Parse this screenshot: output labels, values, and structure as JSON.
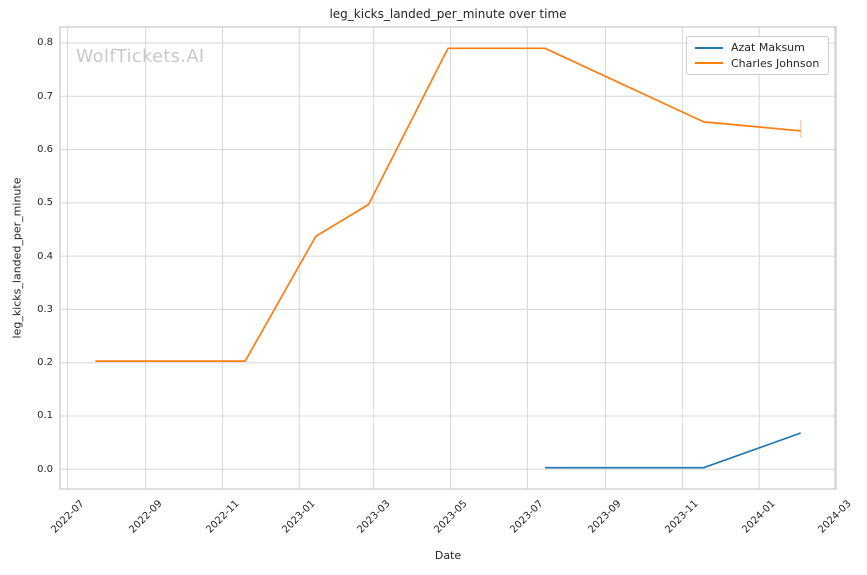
{
  "figure": {
    "watermark": "WolfTickets.AI"
  },
  "chart_data": {
    "type": "line",
    "title": "leg_kicks_landed_per_minute over time",
    "xlabel": "Date",
    "ylabel": "leg_kicks_landed_per_minute",
    "grid": true,
    "legend_position": "upper right",
    "background": "#ffffff",
    "xlim": [
      "2022-06-25",
      "2024-03-02"
    ],
    "ylim": [
      -0.037,
      0.83
    ],
    "x_ticks": [
      "2022-07",
      "2022-09",
      "2022-11",
      "2023-01",
      "2023-03",
      "2023-05",
      "2023-07",
      "2023-09",
      "2023-11",
      "2024-01",
      "2024-03"
    ],
    "y_ticks": [
      "0.0",
      "0.1",
      "0.2",
      "0.3",
      "0.4",
      "0.5",
      "0.6",
      "0.7",
      "0.8"
    ],
    "series": [
      {
        "name": "Azat Maksum",
        "color": "#1f77b4",
        "points": [
          [
            "2023-07-15",
            0.003
          ],
          [
            "2023-11-18",
            0.003
          ],
          [
            "2024-02-03",
            0.068
          ]
        ]
      },
      {
        "name": "Charles Johnson",
        "color": "#ff7f0e",
        "points": [
          [
            "2022-07-23",
            0.203
          ],
          [
            "2022-11-19",
            0.203
          ],
          [
            "2023-01-14",
            0.437
          ],
          [
            "2023-02-25",
            0.497
          ],
          [
            "2023-04-29",
            0.79
          ],
          [
            "2023-07-15",
            0.79
          ],
          [
            "2023-11-18",
            0.652
          ],
          [
            "2024-02-03",
            0.635
          ]
        ],
        "last_point_error_bar": [
          0.622,
          0.655
        ]
      }
    ]
  }
}
